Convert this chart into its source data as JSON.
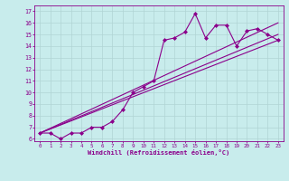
{
  "xlabel": "Windchill (Refroidissement éolien,°C)",
  "bg_color": "#c8ecec",
  "line_color": "#8b008b",
  "grid_color": "#b0d4d4",
  "xlim": [
    -0.5,
    23.5
  ],
  "ylim": [
    5.8,
    17.5
  ],
  "xticks": [
    0,
    1,
    2,
    3,
    4,
    5,
    6,
    7,
    8,
    9,
    10,
    11,
    12,
    13,
    14,
    15,
    16,
    17,
    18,
    19,
    20,
    21,
    22,
    23
  ],
  "yticks": [
    6,
    7,
    8,
    9,
    10,
    11,
    12,
    13,
    14,
    15,
    16,
    17
  ],
  "series": [
    {
      "x": [
        0,
        1,
        2,
        3,
        4,
        5,
        6,
        7,
        8,
        9,
        10,
        11,
        12,
        13,
        14,
        15,
        16,
        17,
        18,
        19,
        20,
        21,
        22,
        23
      ],
      "y": [
        6.5,
        6.5,
        6.0,
        6.5,
        6.5,
        7.0,
        7.0,
        7.5,
        8.5,
        10.0,
        10.5,
        11.0,
        14.5,
        14.7,
        15.2,
        16.8,
        14.7,
        15.8,
        15.8,
        14.0,
        15.3,
        15.5,
        15.0,
        14.5
      ],
      "marker": "D",
      "markersize": 2.0,
      "linewidth": 0.8
    },
    {
      "x": [
        0,
        23
      ],
      "y": [
        6.5,
        14.5
      ],
      "marker": null,
      "linewidth": 0.8
    },
    {
      "x": [
        0,
        23
      ],
      "y": [
        6.5,
        15.0
      ],
      "marker": null,
      "linewidth": 0.8
    },
    {
      "x": [
        0,
        23
      ],
      "y": [
        6.5,
        16.0
      ],
      "marker": null,
      "linewidth": 0.8
    }
  ]
}
